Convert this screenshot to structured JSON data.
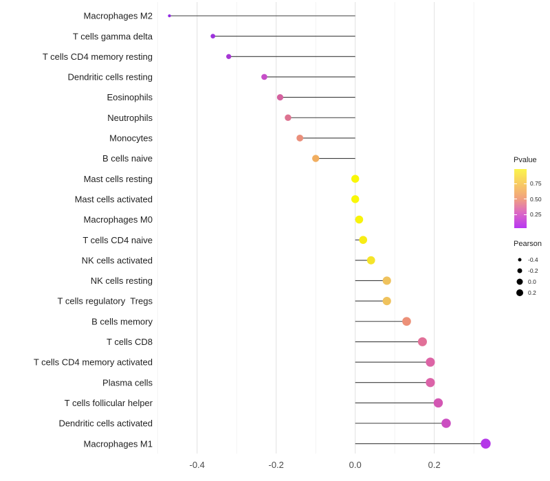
{
  "chart_data": {
    "type": "lollipop",
    "orientation": "horizontal",
    "title": "",
    "xlabel": "",
    "ylabel": "",
    "x_ticks": [
      -0.4,
      -0.2,
      0,
      0.2
    ],
    "x_tick_labels": [
      "-0.4",
      "-0.2",
      "0.0",
      "0.2"
    ],
    "xlim": [
      -0.52,
      0.36
    ],
    "gridlines_x": [
      -0.5,
      -0.4,
      -0.3,
      -0.2,
      -0.1,
      0,
      0.1,
      0.2,
      0.3
    ],
    "baseline_x": 0,
    "grid_on": true,
    "categories": [
      "Macrophages M2",
      "T cells gamma delta",
      "T cells CD4 memory resting",
      "Dendritic cells resting",
      "Eosinophils",
      "Neutrophils",
      "Monocytes",
      "B cells naive",
      "Mast cells resting",
      "Mast cells activated",
      "Macrophages M0",
      "T cells CD4 naive",
      "NK cells activated",
      "NK cells resting",
      "T cells regulatory  Tregs",
      "B cells memory",
      "T cells CD8",
      "T cells CD4 memory activated",
      "Plasma cells",
      "T cells follicular helper",
      "Dendritic cells activated",
      "Macrophages M1"
    ],
    "series": [
      {
        "name": "Pearson",
        "values": [
          -0.47,
          -0.36,
          -0.32,
          -0.23,
          -0.19,
          -0.17,
          -0.14,
          -0.1,
          0,
          0,
          0.01,
          0.02,
          0.04,
          0.08,
          0.08,
          0.13,
          0.17,
          0.19,
          0.19,
          0.21,
          0.23,
          0.33
        ]
      }
    ],
    "point_colors": [
      "#9129E2",
      "#9D33DC",
      "#A637D4",
      "#C64FC8",
      "#D4619F",
      "#DD7391",
      "#EA8F7B",
      "#F1AE60",
      "#F9F707",
      "#F9F707",
      "#F8F30B",
      "#F7EC15",
      "#F5E42A",
      "#EFC25D",
      "#EFC25D",
      "#EC9078",
      "#E17098",
      "#DC64A5",
      "#DB63A8",
      "#D357B3",
      "#CB4EC1",
      "#B438E8"
    ],
    "stem_color": "#3B3B3B",
    "grid_major_color": "#E3E3E3",
    "grid_minor_color": "#F1F1F1",
    "axis_text_color": "#4A4A4A",
    "category_text_color": "#1F1F1F",
    "legend_position": "right",
    "legends": {
      "pvalue": {
        "title": "Pvalue",
        "tick_labels": [
          "0.75",
          "0.50",
          "0.25"
        ],
        "gradient_top_to_bottom": [
          "#FBF44C",
          "#F8CB62",
          "#F1A17F",
          "#DB66C6",
          "#B837F2"
        ]
      },
      "pearson": {
        "title": "Pearson",
        "tick_labels": [
          "-0.4",
          "-0.2",
          "0.0",
          "0.2"
        ],
        "dot_color": "#000000"
      }
    }
  }
}
